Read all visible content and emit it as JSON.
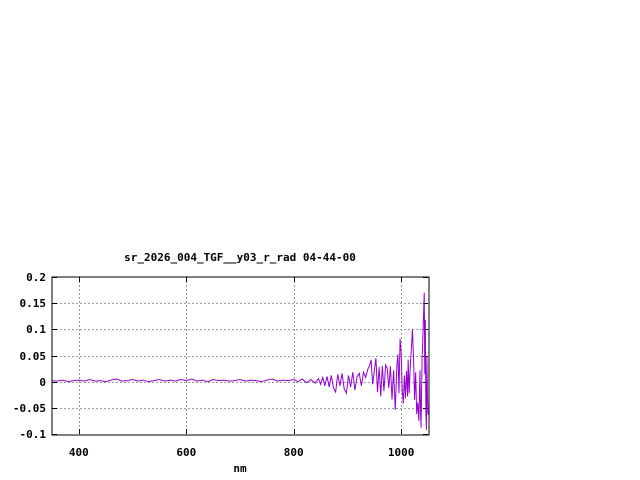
{
  "window": {
    "background_color": "#ffffff"
  },
  "chart_data": {
    "type": "line",
    "title": "sr_2026_004_TGF__y03_r_rad 04-44-00",
    "xlabel": "nm",
    "ylabel": "",
    "x_range": [
      350,
      1050
    ],
    "y_range": [
      -0.1,
      0.2
    ],
    "x_ticks": [
      {
        "value": 400,
        "label": "400"
      },
      {
        "value": 600,
        "label": "600"
      },
      {
        "value": 800,
        "label": "800"
      },
      {
        "value": 1000,
        "label": "1000"
      }
    ],
    "y_ticks": [
      {
        "value": -0.1,
        "label": "-0.1"
      },
      {
        "value": -0.05,
        "label": "-0.05"
      },
      {
        "value": 0,
        "label": "0"
      },
      {
        "value": 0.05,
        "label": "0.05"
      },
      {
        "value": 0.1,
        "label": "0.1"
      },
      {
        "value": 0.15,
        "label": "0.15"
      },
      {
        "value": 0.2,
        "label": "0.2"
      }
    ],
    "grid": true,
    "grid_style": "dashed",
    "legend_position": "none",
    "line_color": "#9400d3",
    "grid_color": "#9a9a9a",
    "border_color": "#000000",
    "text_color": "#000000",
    "points": [
      [
        350,
        0.002
      ],
      [
        360,
        0.001
      ],
      [
        370,
        0.003
      ],
      [
        380,
        0
      ],
      [
        390,
        0.002
      ],
      [
        400,
        0.003
      ],
      [
        410,
        0.001
      ],
      [
        420,
        0.004
      ],
      [
        430,
        0.001
      ],
      [
        440,
        0.002
      ],
      [
        450,
        0
      ],
      [
        460,
        0.003
      ],
      [
        470,
        0.005
      ],
      [
        480,
        0.001
      ],
      [
        490,
        0.002
      ],
      [
        500,
        0.004
      ],
      [
        510,
        0.001
      ],
      [
        520,
        0.003
      ],
      [
        530,
        0
      ],
      [
        540,
        0.002
      ],
      [
        550,
        0.004
      ],
      [
        560,
        0.001
      ],
      [
        570,
        0.003
      ],
      [
        580,
        0.001
      ],
      [
        590,
        0.004
      ],
      [
        600,
        0.002
      ],
      [
        610,
        0.005
      ],
      [
        620,
        0.001
      ],
      [
        630,
        0.003
      ],
      [
        640,
        0
      ],
      [
        650,
        0.004
      ],
      [
        660,
        0.002
      ],
      [
        670,
        0.003
      ],
      [
        680,
        0.001
      ],
      [
        690,
        0.002
      ],
      [
        700,
        0.004
      ],
      [
        710,
        0.001
      ],
      [
        720,
        0.003
      ],
      [
        730,
        0.002
      ],
      [
        740,
        0
      ],
      [
        750,
        0.003
      ],
      [
        760,
        0.005
      ],
      [
        770,
        0.001
      ],
      [
        780,
        0.003
      ],
      [
        790,
        0.002
      ],
      [
        800,
        0.004
      ],
      [
        808,
        0
      ],
      [
        816,
        0.005
      ],
      [
        824,
        -0.002
      ],
      [
        832,
        0.004
      ],
      [
        840,
        -0.003
      ],
      [
        846,
        0.006
      ],
      [
        850,
        -0.005
      ],
      [
        854,
        0.008
      ],
      [
        858,
        -0.008
      ],
      [
        862,
        0.01
      ],
      [
        866,
        -0.01
      ],
      [
        870,
        0.012
      ],
      [
        874,
        -0.012
      ],
      [
        878,
        -0.02
      ],
      [
        882,
        0.014
      ],
      [
        886,
        -0.008
      ],
      [
        890,
        0.016
      ],
      [
        894,
        -0.014
      ],
      [
        898,
        -0.022
      ],
      [
        902,
        0.012
      ],
      [
        906,
        -0.01
      ],
      [
        910,
        0.018
      ],
      [
        914,
        -0.016
      ],
      [
        918,
        0.01
      ],
      [
        922,
        0.016
      ],
      [
        926,
        -0.008
      ],
      [
        930,
        0.018
      ],
      [
        934,
        0.008
      ],
      [
        938,
        0.024
      ],
      [
        941,
        0.03
      ],
      [
        944,
        0.042
      ],
      [
        947,
        -0.005
      ],
      [
        950,
        0.02
      ],
      [
        953,
        0.045
      ],
      [
        956,
        -0.02
      ],
      [
        959,
        0.028
      ],
      [
        962,
        -0.028
      ],
      [
        965,
        0.03
      ],
      [
        968,
        -0.018
      ],
      [
        971,
        0.032
      ],
      [
        974,
        0.026
      ],
      [
        977,
        -0.012
      ],
      [
        980,
        0.03
      ],
      [
        983,
        -0.034
      ],
      [
        986,
        0.022
      ],
      [
        989,
        -0.054
      ],
      [
        992,
        0.03
      ],
      [
        994,
        0.052
      ],
      [
        996,
        -0.022
      ],
      [
        998,
        0.082
      ],
      [
        1000,
        0.055
      ],
      [
        1002,
        -0.015
      ],
      [
        1004,
        -0.042
      ],
      [
        1006,
        0.012
      ],
      [
        1008,
        -0.032
      ],
      [
        1010,
        0.02
      ],
      [
        1012,
        -0.028
      ],
      [
        1013,
        0.042
      ],
      [
        1015,
        -0.022
      ],
      [
        1017,
        0.03
      ],
      [
        1019,
        0.062
      ],
      [
        1021,
        0.1
      ],
      [
        1023,
        0.048
      ],
      [
        1025,
        -0.035
      ],
      [
        1027,
        0.018
      ],
      [
        1029,
        -0.062
      ],
      [
        1031,
        -0.04
      ],
      [
        1033,
        -0.075
      ],
      [
        1035,
        0.022
      ],
      [
        1036,
        -0.05
      ],
      [
        1037,
        -0.088
      ],
      [
        1039,
        0.042
      ],
      [
        1041,
        0.105
      ],
      [
        1043,
        0.17
      ],
      [
        1044,
        0.015
      ],
      [
        1045,
        0.118
      ],
      [
        1046,
        -0.058
      ],
      [
        1047,
        -0.092
      ],
      [
        1048,
        0.048
      ],
      [
        1049,
        -0.028
      ],
      [
        1050,
        -0.063
      ],
      [
        1051,
        -0.048
      ]
    ]
  }
}
